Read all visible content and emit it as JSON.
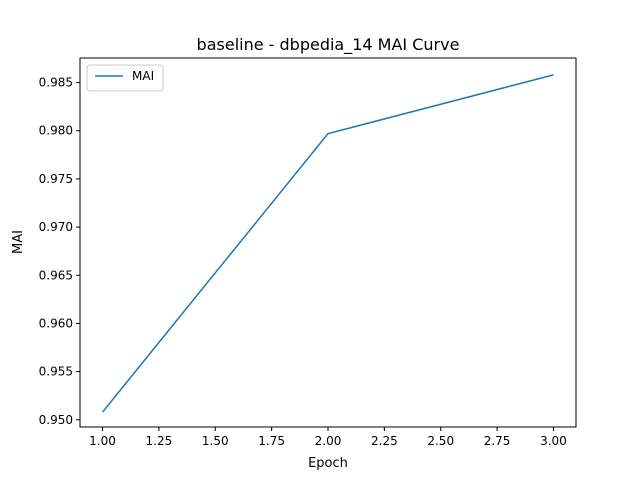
{
  "chart_data": {
    "type": "line",
    "title": "baseline - dbpedia_14 MAI Curve",
    "xlabel": "Epoch",
    "ylabel": "MAI",
    "x": [
      1.0,
      2.0,
      3.0
    ],
    "series": [
      {
        "name": "MAI",
        "values": [
          0.9508,
          0.9797,
          0.9858
        ],
        "color": "#1f77b4"
      }
    ],
    "xlim": [
      0.9,
      3.1
    ],
    "ylim": [
      0.94925,
      0.98755
    ],
    "xticks": [
      1.0,
      1.25,
      1.5,
      1.75,
      2.0,
      2.25,
      2.5,
      2.75,
      3.0
    ],
    "xtick_labels": [
      "1.00",
      "1.25",
      "1.50",
      "1.75",
      "2.00",
      "2.25",
      "2.50",
      "2.75",
      "3.00"
    ],
    "yticks": [
      0.95,
      0.955,
      0.96,
      0.965,
      0.97,
      0.975,
      0.98,
      0.985
    ],
    "ytick_labels": [
      "0.950",
      "0.955",
      "0.960",
      "0.965",
      "0.970",
      "0.975",
      "0.980",
      "0.985"
    ],
    "legend": {
      "placement": "upper-left",
      "entries": [
        "MAI"
      ]
    },
    "grid": false
  }
}
